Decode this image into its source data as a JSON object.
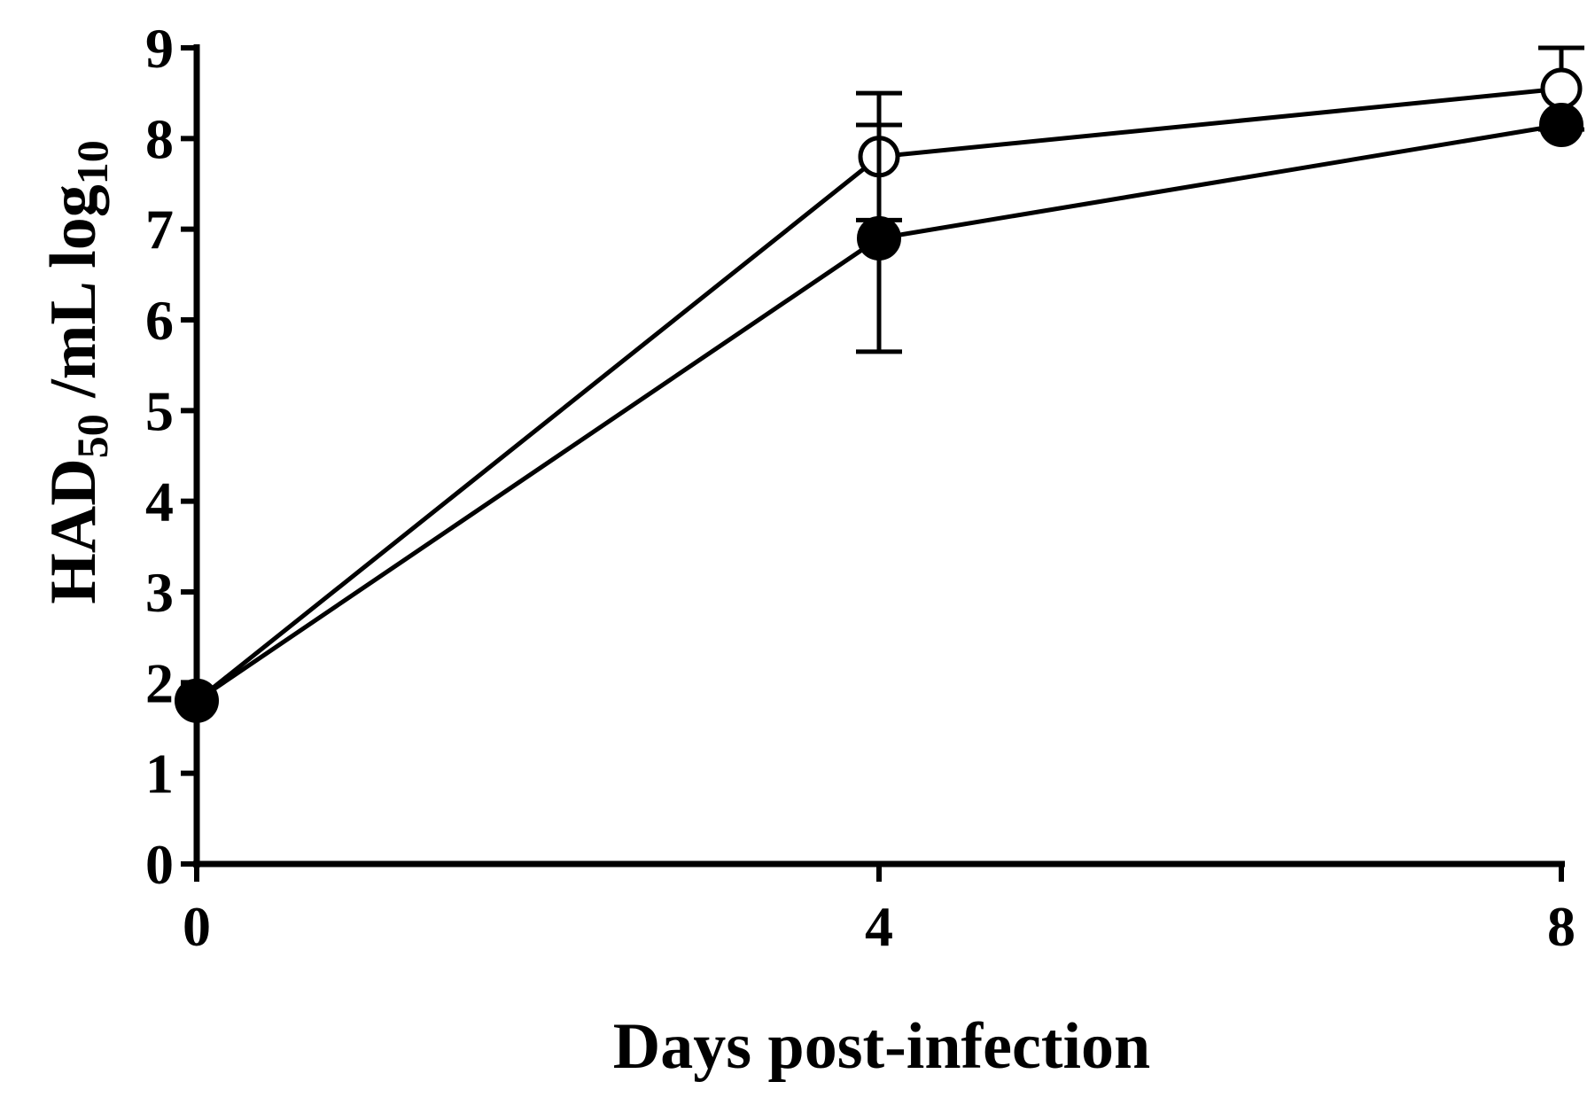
{
  "chart_data": {
    "type": "line",
    "xlabel": "Days post-infection",
    "ylabel": {
      "parts": [
        "HAD",
        "50",
        " /mL log",
        "10"
      ]
    },
    "x": [
      0,
      4,
      8
    ],
    "xlim": [
      0,
      8
    ],
    "ylim": [
      0,
      9
    ],
    "x_ticks": [
      "0",
      "4",
      "8"
    ],
    "y_ticks": [
      "0",
      "1",
      "2",
      "3",
      "4",
      "5",
      "6",
      "7",
      "8",
      "9"
    ],
    "grid": false,
    "legend": "none",
    "series": [
      {
        "marker": "open-circle",
        "color": "#000000",
        "values": [
          1.8,
          7.8,
          8.55
        ],
        "error": [
          0,
          0.7,
          0.45
        ]
      },
      {
        "marker": "filled-circle",
        "color": "#000000",
        "values": [
          1.8,
          6.9,
          8.15
        ],
        "error": [
          0,
          1.25,
          0
        ]
      }
    ]
  }
}
